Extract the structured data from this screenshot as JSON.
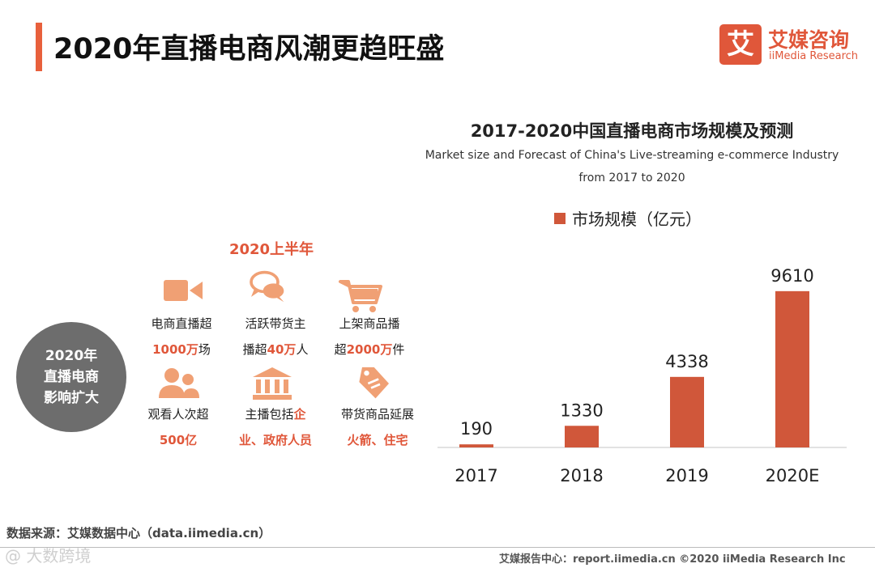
{
  "header": {
    "title": "2020年直播电商风潮更趋旺盛"
  },
  "logo": {
    "mark": "艾",
    "name_cn": "艾媒咨询",
    "name_en": "iiMedia Research"
  },
  "left_panel": {
    "circle_lines": [
      "2020年",
      "直播电商",
      "影响扩大"
    ],
    "period_label": "2020上半年",
    "stats": [
      {
        "icon": "video-camera-icon",
        "line1": [
          {
            "t": "电商直播超",
            "hl": false
          }
        ],
        "line2": [
          {
            "t": "1000万",
            "hl": true
          },
          {
            "t": "场",
            "hl": false
          }
        ]
      },
      {
        "icon": "chat-bubbles-icon",
        "line1": [
          {
            "t": "活跃带货主",
            "hl": false
          }
        ],
        "line2": [
          {
            "t": "播超",
            "hl": false
          },
          {
            "t": "40万",
            "hl": true
          },
          {
            "t": "人",
            "hl": false
          }
        ]
      },
      {
        "icon": "shopping-cart-icon",
        "line1": [
          {
            "t": "上架商品播",
            "hl": false
          }
        ],
        "line2": [
          {
            "t": "超",
            "hl": false
          },
          {
            "t": "2000万",
            "hl": true
          },
          {
            "t": "件",
            "hl": false
          }
        ]
      },
      {
        "icon": "users-icon",
        "line1": [
          {
            "t": "观看人次超",
            "hl": false
          }
        ],
        "line2": [
          {
            "t": "500亿",
            "hl": true
          }
        ]
      },
      {
        "icon": "government-building-icon",
        "line1": [
          {
            "t": "主播包括",
            "hl": false
          },
          {
            "t": "企",
            "hl": true
          }
        ],
        "line2": [
          {
            "t": "业、政府人员",
            "hl": true
          }
        ]
      },
      {
        "icon": "price-tag-icon",
        "line1": [
          {
            "t": "带货商品延展",
            "hl": false
          }
        ],
        "line2": [
          {
            "t": "火箭、住宅",
            "hl": true
          }
        ]
      }
    ]
  },
  "chart_data": {
    "type": "bar",
    "title": "2017-2020中国直播电商市场规模及预测",
    "subtitle_lines": [
      "Market size and Forecast of China's Live-streaming e-commerce Industry",
      "from 2017 to 2020"
    ],
    "legend": [
      "市场规模（亿元）"
    ],
    "categories": [
      "2017",
      "2018",
      "2019",
      "2020E"
    ],
    "values": [
      190,
      1330,
      4338,
      9610
    ],
    "ylim": [
      0,
      10000
    ],
    "xlabel": "",
    "ylabel": "",
    "bar_color": "#d0573a",
    "grid": false
  },
  "footer": {
    "source": "数据来源：艾媒数据中心（data.iimedia.cn）",
    "watermark": "@ 大数跨境",
    "right": "艾媒报告中心：report.iimedia.cn   ©2020  iiMedia Research  Inc"
  },
  "colors": {
    "accent": "#e0573a",
    "icon": "#f0a074",
    "circle": "#6d6d6d"
  }
}
